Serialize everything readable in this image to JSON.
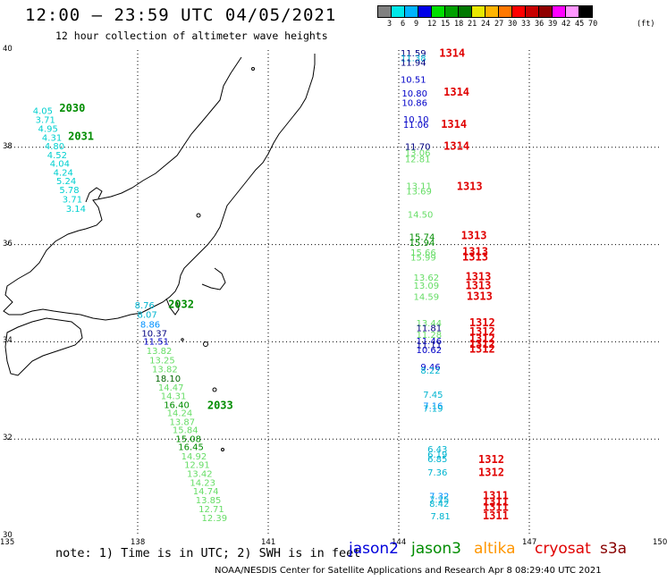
{
  "title": "12:00 – 23:59 UTC 04/05/2021",
  "subtitle": "12 hour collection of altimeter wave heights",
  "scale": {
    "unit": "(ft)",
    "ticks": [
      "3",
      "6",
      "9",
      "12",
      "15",
      "18",
      "21",
      "24",
      "27",
      "30",
      "33",
      "36",
      "39",
      "42",
      "45",
      "70"
    ],
    "colors": [
      "#808080",
      "#00e8e8",
      "#00b4ff",
      "#0000e8",
      "#00e000",
      "#00a000",
      "#007800",
      "#e8e800",
      "#ffb400",
      "#ff7800",
      "#ff0000",
      "#c80000",
      "#900000",
      "#ff00ff",
      "#ff96ff",
      "#000000"
    ]
  },
  "axes": {
    "lon_labels": [
      "135",
      "138",
      "141",
      "144",
      "147",
      "150"
    ],
    "lat_labels": [
      "40",
      "38",
      "36",
      "34",
      "32",
      "30"
    ]
  },
  "note": "note:  1) Time is in UTC;  2) SWH is in feet",
  "satellites": [
    {
      "name": "jason2",
      "color": "#0000dc"
    },
    {
      "name": "jason3",
      "color": "#008c00"
    },
    {
      "name": "altika",
      "color": "#ff9600"
    },
    {
      "name": "cryosat",
      "color": "#e00000"
    },
    {
      "name": "s3a",
      "color": "#880000"
    }
  ],
  "credit": "NOAA/NESDIS Center for Satellite Applications and Research    Apr  8 08:29:40 UTC 2021",
  "observations": [
    {
      "v": "4.05",
      "c": "#00d0d0",
      "lon": 135.59,
      "lat": 38.69
    },
    {
      "v": "3.71",
      "c": "#00d0d0",
      "lon": 135.65,
      "lat": 38.5
    },
    {
      "v": "4.95",
      "c": "#00d0d0",
      "lon": 135.71,
      "lat": 38.32
    },
    {
      "v": "4.31",
      "c": "#00d0d0",
      "lon": 135.8,
      "lat": 38.13
    },
    {
      "v": "4.80",
      "c": "#00d0d0",
      "lon": 135.86,
      "lat": 37.96
    },
    {
      "v": "4.52",
      "c": "#00d0d0",
      "lon": 135.92,
      "lat": 37.78
    },
    {
      "v": "4.04",
      "c": "#00d0d0",
      "lon": 135.98,
      "lat": 37.6
    },
    {
      "v": "4.24",
      "c": "#00d0d0",
      "lon": 136.06,
      "lat": 37.42
    },
    {
      "v": "5.24",
      "c": "#00d0d0",
      "lon": 136.13,
      "lat": 37.24
    },
    {
      "v": "5.78",
      "c": "#00d0d0",
      "lon": 136.2,
      "lat": 37.06
    },
    {
      "v": "3.71",
      "c": "#00d0d0",
      "lon": 136.27,
      "lat": 36.87
    },
    {
      "v": "3.14",
      "c": "#00d0d0",
      "lon": 136.35,
      "lat": 36.67
    },
    {
      "v": "8.76",
      "c": "#00b4d0",
      "lon": 137.93,
      "lat": 34.69
    },
    {
      "v": "8.07",
      "c": "#00b4d0",
      "lon": 137.99,
      "lat": 34.49
    },
    {
      "v": "8.86",
      "c": "#0090ff",
      "lon": 138.06,
      "lat": 34.29
    },
    {
      "v": "10.37",
      "c": "#000080",
      "lon": 138.09,
      "lat": 34.11
    },
    {
      "v": "11.51",
      "c": "#0000c8",
      "lon": 138.13,
      "lat": 33.94
    },
    {
      "v": "13.82",
      "c": "#66dd66",
      "lon": 138.2,
      "lat": 33.75
    },
    {
      "v": "13.25",
      "c": "#66dd66",
      "lon": 138.27,
      "lat": 33.56
    },
    {
      "v": "13.82",
      "c": "#66dd66",
      "lon": 138.33,
      "lat": 33.37
    },
    {
      "v": "18.10",
      "c": "#006400",
      "lon": 138.4,
      "lat": 33.18
    },
    {
      "v": "14.47",
      "c": "#66dd66",
      "lon": 138.47,
      "lat": 33.0
    },
    {
      "v": "14.31",
      "c": "#66dd66",
      "lon": 138.53,
      "lat": 32.82
    },
    {
      "v": "16.40",
      "c": "#008c00",
      "lon": 138.6,
      "lat": 32.64
    },
    {
      "v": "14.24",
      "c": "#66dd66",
      "lon": 138.67,
      "lat": 32.47
    },
    {
      "v": "13.87",
      "c": "#66dd66",
      "lon": 138.73,
      "lat": 32.29
    },
    {
      "v": "15.84",
      "c": "#66dd66",
      "lon": 138.8,
      "lat": 32.12
    },
    {
      "v": "15.08",
      "c": "#008c00",
      "lon": 138.87,
      "lat": 31.94
    },
    {
      "v": "16.45",
      "c": "#008c00",
      "lon": 138.93,
      "lat": 31.77
    },
    {
      "v": "14.92",
      "c": "#66dd66",
      "lon": 139.0,
      "lat": 31.58
    },
    {
      "v": "12.91",
      "c": "#66dd66",
      "lon": 139.07,
      "lat": 31.41
    },
    {
      "v": "13.42",
      "c": "#66dd66",
      "lon": 139.13,
      "lat": 31.22
    },
    {
      "v": "14.23",
      "c": "#66dd66",
      "lon": 139.2,
      "lat": 31.04
    },
    {
      "v": "14.74",
      "c": "#66dd66",
      "lon": 139.27,
      "lat": 30.86
    },
    {
      "v": "13.85",
      "c": "#66dd66",
      "lon": 139.33,
      "lat": 30.68
    },
    {
      "v": "12.71",
      "c": "#66dd66",
      "lon": 139.4,
      "lat": 30.5
    },
    {
      "v": "12.39",
      "c": "#66dd66",
      "lon": 139.47,
      "lat": 30.31
    },
    {
      "v": "11.59",
      "c": "#000080",
      "lon": 144.04,
      "lat": 39.87
    },
    {
      "v": "11.38",
      "c": "#00b4d0",
      "lon": 144.04,
      "lat": 39.77
    },
    {
      "v": "11.94",
      "c": "#000080",
      "lon": 144.04,
      "lat": 39.68
    },
    {
      "v": "10.51",
      "c": "#0000c8",
      "lon": 144.04,
      "lat": 39.33
    },
    {
      "v": "10.80",
      "c": "#0000c8",
      "lon": 144.07,
      "lat": 39.04
    },
    {
      "v": "10.86",
      "c": "#0000c8",
      "lon": 144.07,
      "lat": 38.85
    },
    {
      "v": "10.10",
      "c": "#0000c8",
      "lon": 144.1,
      "lat": 38.51
    },
    {
      "v": "11.06",
      "c": "#0000c8",
      "lon": 144.1,
      "lat": 38.4
    },
    {
      "v": "11.70",
      "c": "#000080",
      "lon": 144.14,
      "lat": 37.95
    },
    {
      "v": "13.06",
      "c": "#66dd66",
      "lon": 144.14,
      "lat": 37.82
    },
    {
      "v": "12.81",
      "c": "#66dd66",
      "lon": 144.14,
      "lat": 37.69
    },
    {
      "v": "13.11",
      "c": "#66dd66",
      "lon": 144.17,
      "lat": 37.14
    },
    {
      "v": "13.69",
      "c": "#66dd66",
      "lon": 144.17,
      "lat": 37.03
    },
    {
      "v": "14.50",
      "c": "#66dd66",
      "lon": 144.2,
      "lat": 36.55
    },
    {
      "v": "15.74",
      "c": "#008c00",
      "lon": 144.24,
      "lat": 36.09
    },
    {
      "v": "15.94",
      "c": "#008c00",
      "lon": 144.24,
      "lat": 35.97
    },
    {
      "v": "15.66",
      "c": "#66dd66",
      "lon": 144.27,
      "lat": 35.77
    },
    {
      "v": "15.99",
      "c": "#66dd66",
      "lon": 144.27,
      "lat": 35.67
    },
    {
      "v": "13.62",
      "c": "#66dd66",
      "lon": 144.34,
      "lat": 35.26
    },
    {
      "v": "13.09",
      "c": "#66dd66",
      "lon": 144.34,
      "lat": 35.09
    },
    {
      "v": "14.59",
      "c": "#66dd66",
      "lon": 144.34,
      "lat": 34.86
    },
    {
      "v": "13.44",
      "c": "#66dd66",
      "lon": 144.4,
      "lat": 34.32
    },
    {
      "v": "11.81",
      "c": "#000080",
      "lon": 144.4,
      "lat": 34.22
    },
    {
      "v": "11.28",
      "c": "#66dd66",
      "lon": 144.4,
      "lat": 34.08
    },
    {
      "v": "11.46",
      "c": "#0000c8",
      "lon": 144.4,
      "lat": 33.95
    },
    {
      "v": "11.11",
      "c": "#000080",
      "lon": 144.4,
      "lat": 33.87
    },
    {
      "v": "10.62",
      "c": "#0000c8",
      "lon": 144.4,
      "lat": 33.77
    },
    {
      "v": "9.46",
      "c": "#0000c8",
      "lon": 144.5,
      "lat": 33.42
    },
    {
      "v": "8.22",
      "c": "#00b4d0",
      "lon": 144.5,
      "lat": 33.35
    },
    {
      "v": "7.45",
      "c": "#00b4d0",
      "lon": 144.56,
      "lat": 32.85
    },
    {
      "v": "7.16",
      "c": "#0090ff",
      "lon": 144.56,
      "lat": 32.62
    },
    {
      "v": "7.19",
      "c": "#00b4d0",
      "lon": 144.56,
      "lat": 32.56
    },
    {
      "v": "6.43",
      "c": "#00b4d0",
      "lon": 144.66,
      "lat": 31.73
    },
    {
      "v": "6.19",
      "c": "#00b4d0",
      "lon": 144.66,
      "lat": 31.62
    },
    {
      "v": "6.85",
      "c": "#00b4d0",
      "lon": 144.66,
      "lat": 31.53
    },
    {
      "v": "7.36",
      "c": "#00b4d0",
      "lon": 144.66,
      "lat": 31.25
    },
    {
      "v": "7.32",
      "c": "#0090ff",
      "lon": 144.7,
      "lat": 30.76
    },
    {
      "v": "7.25",
      "c": "#00b4d0",
      "lon": 144.7,
      "lat": 30.69
    },
    {
      "v": "8.42",
      "c": "#00b4d0",
      "lon": 144.7,
      "lat": 30.61
    },
    {
      "v": "7.81",
      "c": "#00b4d0",
      "lon": 144.73,
      "lat": 30.35
    }
  ],
  "pass_labels": [
    {
      "t": "2030",
      "c": "#008c00",
      "lon": 136.2,
      "lat": 38.73
    },
    {
      "t": "2031",
      "c": "#008c00",
      "lon": 136.4,
      "lat": 38.15
    },
    {
      "t": "2032",
      "c": "#008c00",
      "lon": 138.7,
      "lat": 34.7
    },
    {
      "t": "2033",
      "c": "#008c00",
      "lon": 139.6,
      "lat": 32.62
    },
    {
      "t": "1314",
      "c": "#e00000",
      "lon": 144.93,
      "lat": 39.86
    },
    {
      "t": "1314",
      "c": "#e00000",
      "lon": 145.03,
      "lat": 39.06
    },
    {
      "t": "1314",
      "c": "#e00000",
      "lon": 144.97,
      "lat": 38.4
    },
    {
      "t": "1314",
      "c": "#e00000",
      "lon": 145.03,
      "lat": 37.95
    },
    {
      "t": "1313",
      "c": "#e00000",
      "lon": 145.33,
      "lat": 37.12
    },
    {
      "t": "1313",
      "c": "#e00000",
      "lon": 145.43,
      "lat": 36.11
    },
    {
      "t": "1313",
      "c": "#e00000",
      "lon": 145.46,
      "lat": 35.78
    },
    {
      "t": "1313",
      "c": "#e00000",
      "lon": 145.46,
      "lat": 35.67
    },
    {
      "t": "1313",
      "c": "#e00000",
      "lon": 145.53,
      "lat": 35.27
    },
    {
      "t": "1313",
      "c": "#e00000",
      "lon": 145.53,
      "lat": 35.08
    },
    {
      "t": "1313",
      "c": "#e00000",
      "lon": 145.56,
      "lat": 34.86
    },
    {
      "t": "1312",
      "c": "#e00000",
      "lon": 145.62,
      "lat": 34.32
    },
    {
      "t": "1312",
      "c": "#e00000",
      "lon": 145.62,
      "lat": 34.14
    },
    {
      "t": "1312",
      "c": "#e00000",
      "lon": 145.62,
      "lat": 33.99
    },
    {
      "t": "1312",
      "c": "#e00000",
      "lon": 145.62,
      "lat": 33.88
    },
    {
      "t": "1312",
      "c": "#e00000",
      "lon": 145.62,
      "lat": 33.78
    },
    {
      "t": "1312",
      "c": "#e00000",
      "lon": 145.83,
      "lat": 31.51
    },
    {
      "t": "1312",
      "c": "#e00000",
      "lon": 145.83,
      "lat": 31.24
    },
    {
      "t": "1311",
      "c": "#e00000",
      "lon": 145.93,
      "lat": 30.76
    },
    {
      "t": "1311",
      "c": "#e00000",
      "lon": 145.93,
      "lat": 30.63
    },
    {
      "t": "1311",
      "c": "#e00000",
      "lon": 145.93,
      "lat": 30.52
    },
    {
      "t": "1311",
      "c": "#e00000",
      "lon": 145.93,
      "lat": 30.35
    }
  ]
}
